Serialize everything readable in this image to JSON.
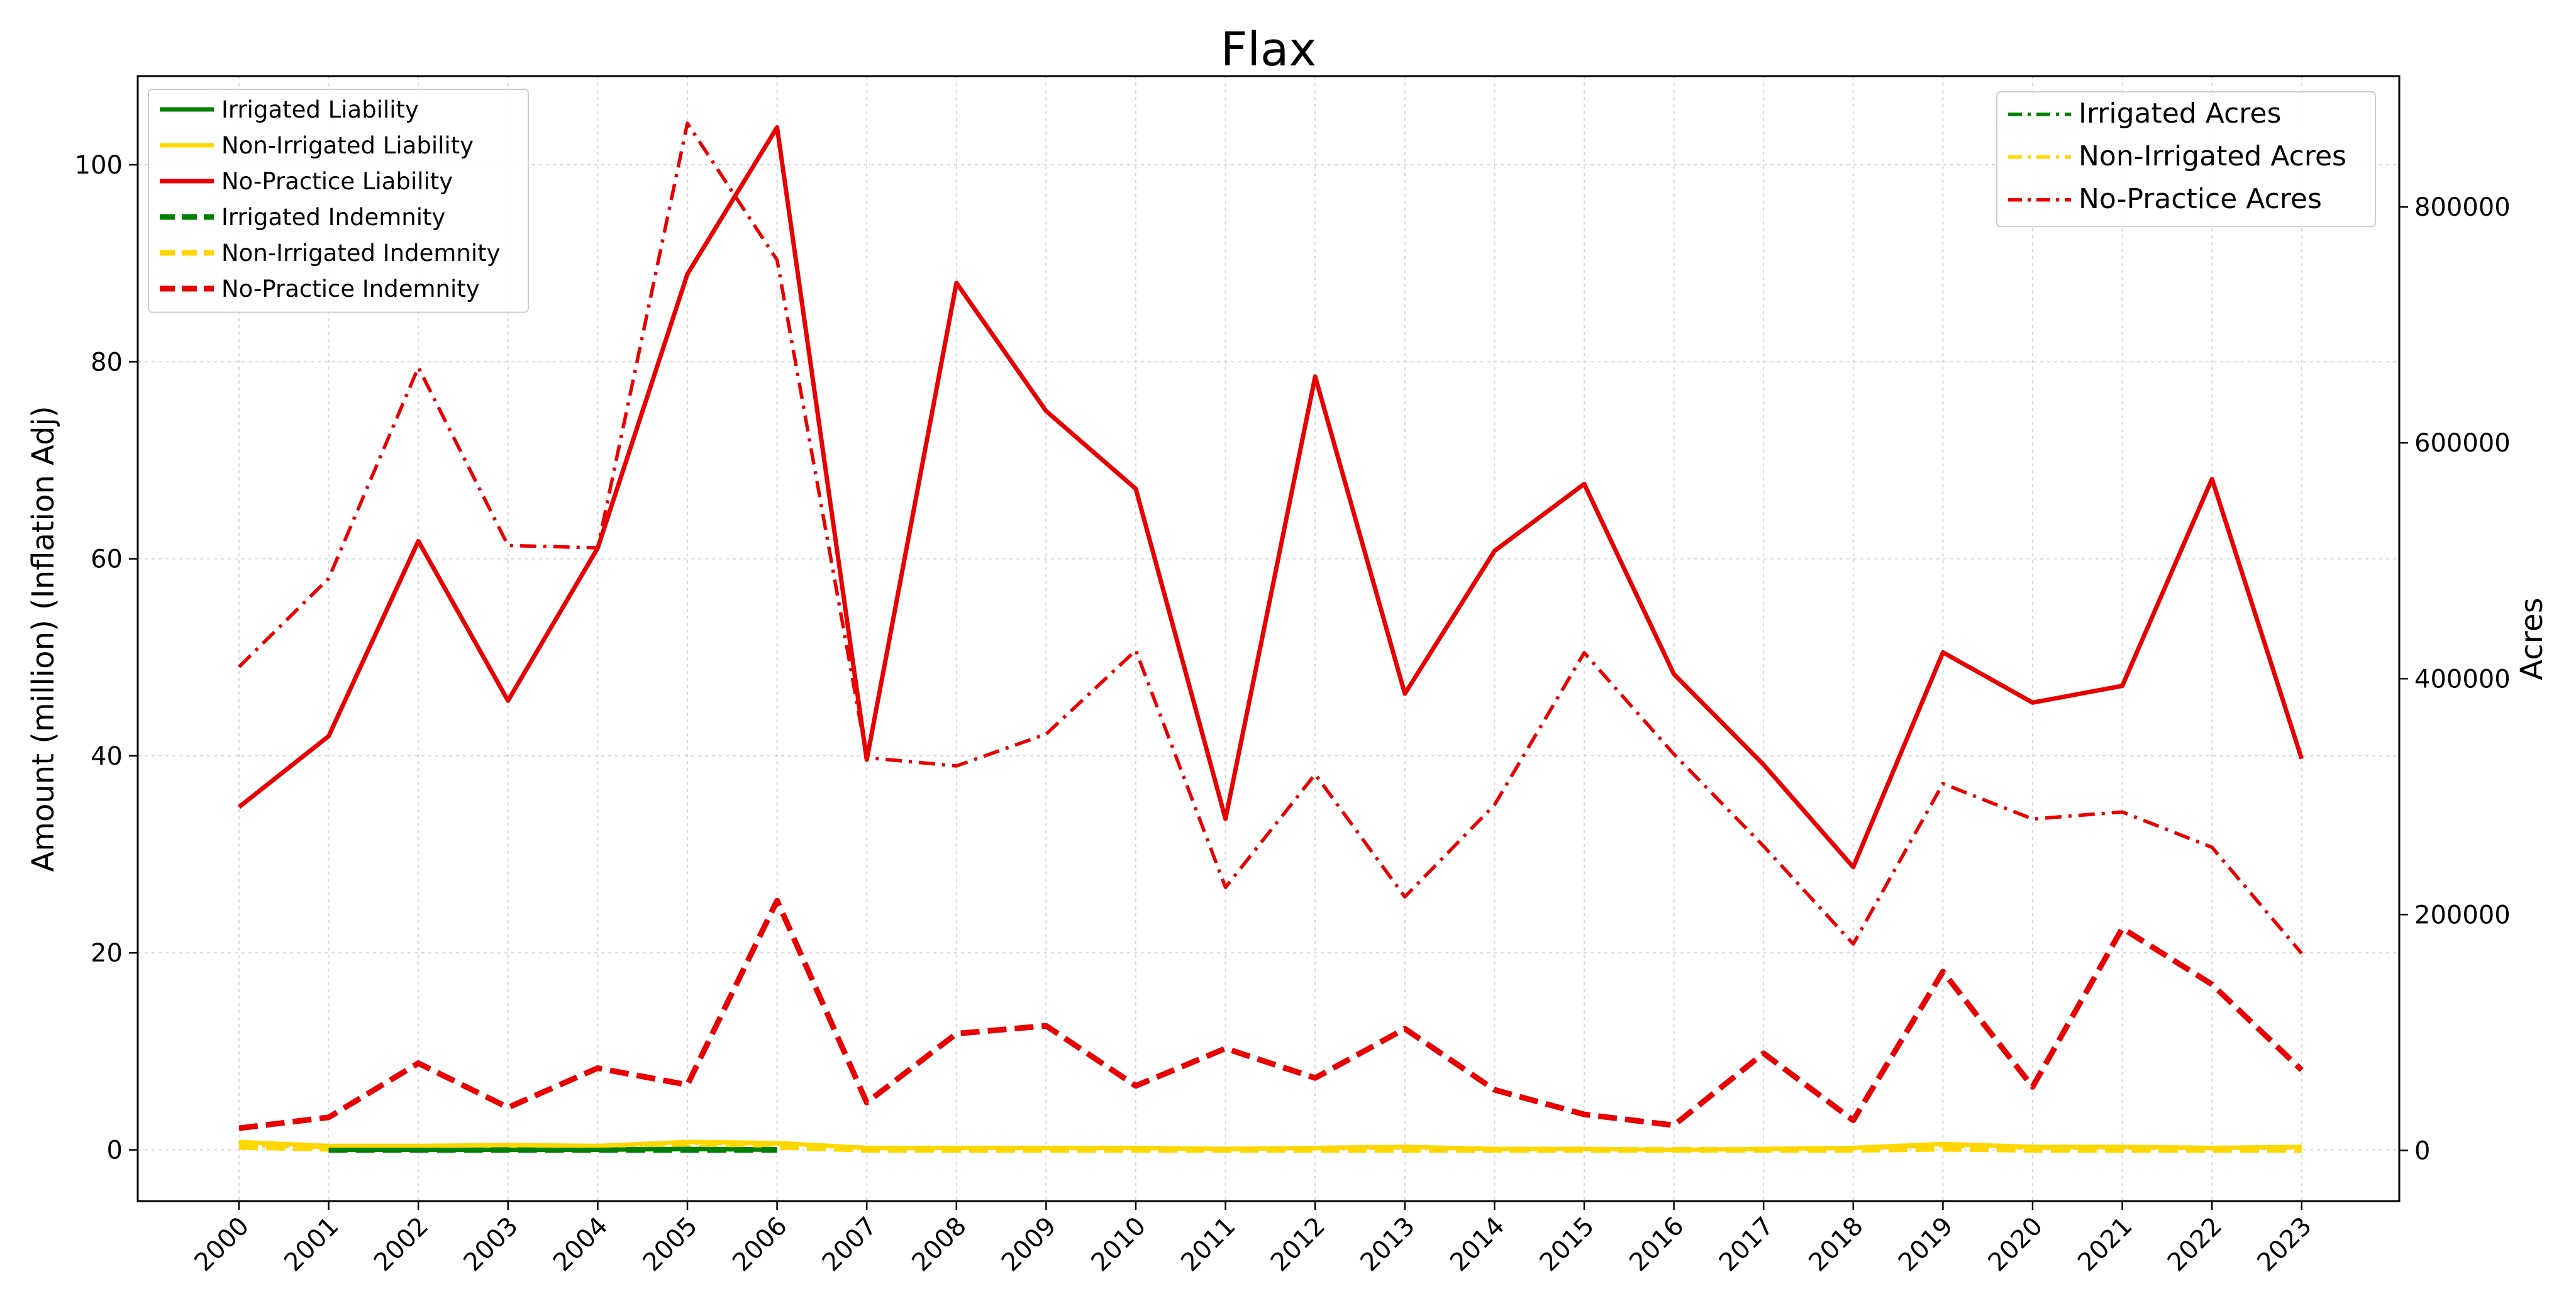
{
  "chart_data": {
    "type": "line",
    "title": "Flax",
    "ylabel": "Amount (million) (Inflation Adj)",
    "y2label": "Acres",
    "x": [
      "2000",
      "2001",
      "2002",
      "2003",
      "2004",
      "2005",
      "2006",
      "2007",
      "2008",
      "2009",
      "2010",
      "2011",
      "2012",
      "2013",
      "2014",
      "2015",
      "2016",
      "2017",
      "2018",
      "2019",
      "2020",
      "2021",
      "2022",
      "2023"
    ],
    "ylim": [
      -5.2,
      109
    ],
    "y2lim": [
      -43000,
      911000
    ],
    "yticks": [
      "0",
      "20",
      "40",
      "60",
      "80",
      "100"
    ],
    "y2ticks": [
      "0",
      "200000",
      "400000",
      "600000",
      "800000"
    ],
    "grid": true,
    "colors": {
      "irrigated": "#008000",
      "non_irrigated": "#FFD700",
      "no_practice": "#E80000"
    },
    "series": [
      {
        "name": "Irrigated Liability",
        "axis": "left",
        "style": "solid",
        "color": "irrigated",
        "values": [
          null,
          0.0,
          0.0,
          0.0,
          0.0,
          0.1,
          0.0,
          null,
          null,
          null,
          null,
          null,
          null,
          null,
          null,
          null,
          null,
          null,
          null,
          null,
          null,
          null,
          null,
          null
        ]
      },
      {
        "name": "Non-Irrigated Liability",
        "axis": "left",
        "style": "solid",
        "color": "non_irrigated",
        "values": [
          0.8,
          0.4,
          0.4,
          0.5,
          0.4,
          0.8,
          0.7,
          0.2,
          0.2,
          0.2,
          0.2,
          0.1,
          0.2,
          0.3,
          0.1,
          0.1,
          0.0,
          0.1,
          0.2,
          0.6,
          0.3,
          0.3,
          0.2,
          0.3
        ]
      },
      {
        "name": "No-Practice Liability",
        "axis": "left",
        "style": "solid",
        "color": "no_practice",
        "values": [
          34.8,
          42.0,
          61.8,
          45.6,
          61.1,
          88.9,
          103.8,
          39.6,
          88.0,
          75.0,
          67.1,
          33.6,
          78.5,
          46.3,
          60.8,
          67.6,
          48.3,
          39.1,
          28.7,
          50.5,
          45.4,
          47.1,
          68.1,
          39.7
        ]
      },
      {
        "name": "Irrigated Indemnity",
        "axis": "left",
        "style": "dashed",
        "color": "irrigated",
        "values": [
          null,
          0.0,
          0.0,
          0.0,
          0.0,
          0.0,
          0.0,
          null,
          null,
          null,
          null,
          null,
          null,
          null,
          null,
          null,
          null,
          null,
          null,
          null,
          null,
          null,
          null,
          null
        ]
      },
      {
        "name": "Non-Irrigated Indemnity",
        "axis": "left",
        "style": "dashed",
        "color": "non_irrigated",
        "values": [
          0.3,
          0.1,
          0.1,
          0.1,
          0.1,
          0.2,
          0.3,
          0.0,
          0.0,
          0.0,
          0.0,
          0.0,
          0.0,
          0.0,
          0.0,
          0.0,
          0.0,
          0.0,
          0.0,
          0.1,
          0.0,
          0.0,
          0.0,
          0.0
        ]
      },
      {
        "name": "No-Practice Indemnity",
        "axis": "left",
        "style": "dashed",
        "color": "no_practice",
        "values": [
          2.2,
          3.3,
          8.8,
          4.3,
          8.3,
          6.6,
          25.3,
          4.8,
          11.8,
          12.6,
          6.5,
          10.3,
          7.3,
          12.3,
          6.1,
          3.6,
          2.5,
          9.8,
          3.0,
          18.1,
          6.4,
          22.5,
          16.8,
          8.1
        ]
      },
      {
        "name": "Irrigated Acres",
        "axis": "right",
        "style": "dashdot",
        "color": "irrigated",
        "values": [
          null,
          500,
          400,
          400,
          400,
          800,
          600,
          null,
          null,
          null,
          null,
          null,
          null,
          null,
          null,
          null,
          null,
          null,
          null,
          null,
          null,
          null,
          null,
          null
        ]
      },
      {
        "name": "Non-Irrigated Acres",
        "axis": "right",
        "style": "dashdot",
        "color": "non_irrigated",
        "values": [
          4000,
          2500,
          3000,
          3500,
          3000,
          6000,
          5500,
          1500,
          1500,
          1500,
          1500,
          1000,
          1500,
          2000,
          1000,
          1000,
          500,
          1000,
          1500,
          4000,
          2000,
          2000,
          1500,
          2000
        ]
      },
      {
        "name": "No-Practice Acres",
        "axis": "right",
        "style": "dashdot",
        "color": "no_practice",
        "values": [
          410000,
          485000,
          664000,
          513000,
          511000,
          871000,
          755000,
          333000,
          326000,
          353000,
          424000,
          223000,
          319000,
          215000,
          293000,
          422000,
          336000,
          258000,
          175000,
          311000,
          281000,
          287000,
          257000,
          167000
        ]
      }
    ],
    "legend_left": [
      "Irrigated Liability",
      "Non-Irrigated Liability",
      "No-Practice Liability",
      "Irrigated Indemnity",
      "Non-Irrigated Indemnity",
      "No-Practice Indemnity"
    ],
    "legend_right": [
      "Irrigated Acres",
      "Non-Irrigated Acres",
      "No-Practice Acres"
    ],
    "legend_left_placement": "top-left",
    "legend_right_placement": "top-right"
  }
}
